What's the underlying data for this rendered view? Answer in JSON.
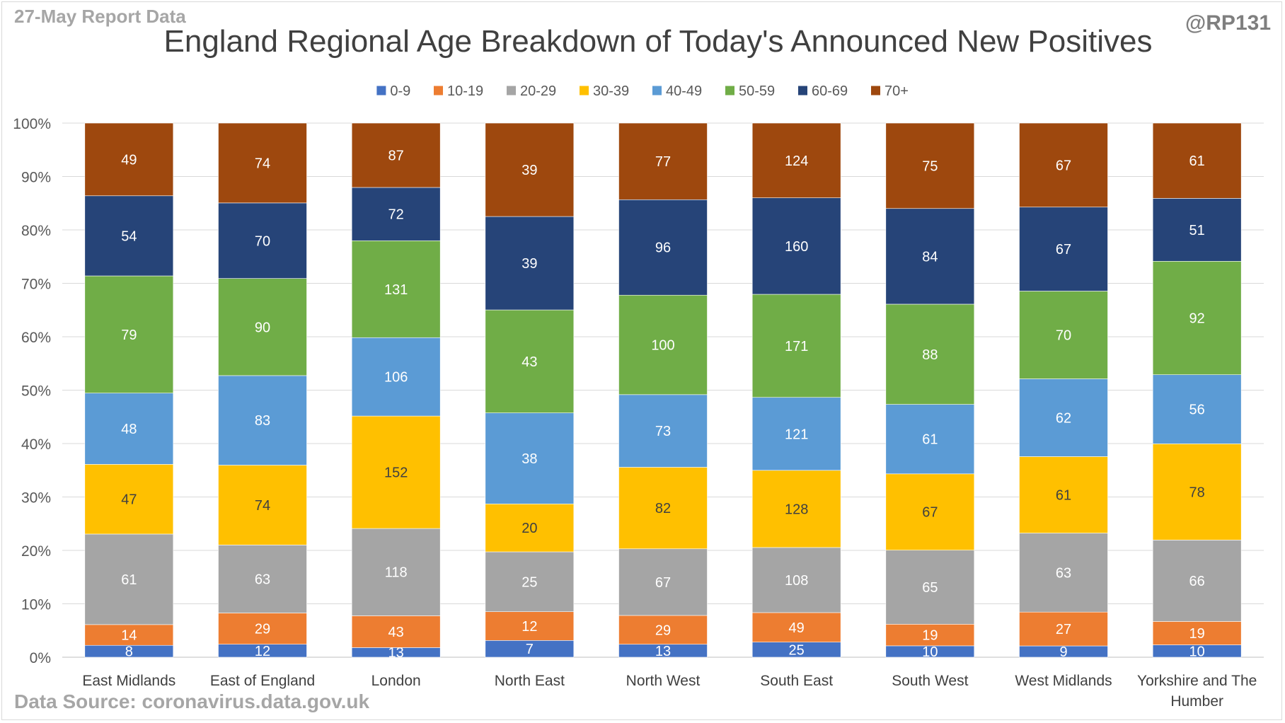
{
  "header": {
    "report_date": "27-May Report Data",
    "handle": "@RP131",
    "source": "Data Source: coronavirus.data.gov.uk"
  },
  "chart_data": {
    "type": "bar",
    "stacked": true,
    "normalized": "percent",
    "title": "England Regional Age Breakdown of Today's Announced New Positives",
    "xlabel": "",
    "ylabel": "",
    "ylim": [
      0,
      100
    ],
    "y_ticks": [
      "0%",
      "10%",
      "20%",
      "30%",
      "40%",
      "50%",
      "60%",
      "70%",
      "80%",
      "90%",
      "100%"
    ],
    "grid": true,
    "legend_position": "top",
    "categories": [
      [
        "East Midlands"
      ],
      [
        "East of England"
      ],
      [
        "London"
      ],
      [
        "North East"
      ],
      [
        "North West"
      ],
      [
        "South East"
      ],
      [
        "South West"
      ],
      [
        "West Midlands"
      ],
      [
        "Yorkshire and The",
        "Humber"
      ]
    ],
    "series": [
      {
        "name": "0-9",
        "color": "#4472C4",
        "label_color": "#ffffff",
        "values": [
          8,
          12,
          13,
          7,
          13,
          25,
          10,
          9,
          10
        ]
      },
      {
        "name": "10-19",
        "color": "#ED7D31",
        "label_color": "#ffffff",
        "values": [
          14,
          29,
          43,
          12,
          29,
          49,
          19,
          27,
          19
        ]
      },
      {
        "name": "20-29",
        "color": "#A5A5A5",
        "label_color": "#ffffff",
        "values": [
          61,
          63,
          118,
          25,
          67,
          108,
          65,
          63,
          66
        ]
      },
      {
        "name": "30-39",
        "color": "#FFC000",
        "label_color": "#404040",
        "values": [
          47,
          74,
          152,
          20,
          82,
          128,
          67,
          61,
          78
        ]
      },
      {
        "name": "40-49",
        "color": "#5B9BD5",
        "label_color": "#ffffff",
        "values": [
          48,
          83,
          106,
          38,
          73,
          121,
          61,
          62,
          56
        ]
      },
      {
        "name": "50-59",
        "color": "#70AD47",
        "label_color": "#ffffff",
        "values": [
          79,
          90,
          131,
          43,
          100,
          171,
          88,
          70,
          92
        ]
      },
      {
        "name": "60-69",
        "color": "#264478",
        "label_color": "#ffffff",
        "values": [
          54,
          70,
          72,
          39,
          96,
          160,
          84,
          67,
          51
        ]
      },
      {
        "name": "70+",
        "color": "#9E480E",
        "label_color": "#ffffff",
        "values": [
          49,
          74,
          87,
          39,
          77,
          124,
          75,
          67,
          61
        ]
      }
    ]
  }
}
